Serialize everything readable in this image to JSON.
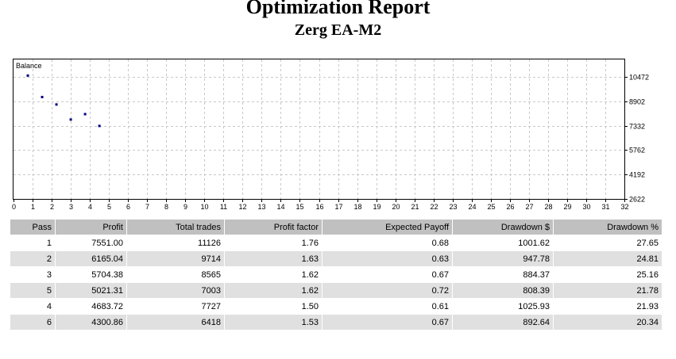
{
  "report": {
    "title": "Optimization Report",
    "subtitle": "Zerg EA-M2"
  },
  "chart_data": {
    "type": "scatter",
    "title": "Balance",
    "x_ticks": [
      0,
      1,
      2,
      3,
      4,
      5,
      6,
      7,
      8,
      9,
      10,
      11,
      12,
      13,
      14,
      15,
      16,
      17,
      18,
      19,
      20,
      21,
      22,
      23,
      24,
      25,
      26,
      27,
      28,
      29,
      30,
      31,
      32
    ],
    "y_ticks": [
      2622,
      4192,
      5762,
      7332,
      8902,
      10472
    ],
    "xlim": [
      0,
      32
    ],
    "ylim": [
      2622,
      11600
    ],
    "grid": true,
    "points": [
      {
        "x": 0.75,
        "y": 10560
      },
      {
        "x": 1.5,
        "y": 9180
      },
      {
        "x": 2.25,
        "y": 8700
      },
      {
        "x": 3.0,
        "y": 7730
      },
      {
        "x": 3.75,
        "y": 8080
      },
      {
        "x": 4.5,
        "y": 7320
      }
    ],
    "point_color": "#000080"
  },
  "table": {
    "columns": [
      "Pass",
      "Profit",
      "Total trades",
      "Profit factor",
      "Expected Payoff",
      "Drawdown $",
      "Drawdown %"
    ],
    "rows": [
      [
        "1",
        "7551.00",
        "11126",
        "1.76",
        "0.68",
        "1001.62",
        "27.65"
      ],
      [
        "2",
        "6165.04",
        "9714",
        "1.63",
        "0.63",
        "947.78",
        "24.81"
      ],
      [
        "3",
        "5704.38",
        "8565",
        "1.62",
        "0.67",
        "884.37",
        "25.16"
      ],
      [
        "5",
        "5021.31",
        "7003",
        "1.62",
        "0.72",
        "808.39",
        "21.78"
      ],
      [
        "4",
        "4683.72",
        "7727",
        "1.50",
        "0.61",
        "1025.93",
        "21.93"
      ],
      [
        "6",
        "4300.86",
        "6418",
        "1.53",
        "0.67",
        "892.64",
        "20.34"
      ]
    ]
  }
}
